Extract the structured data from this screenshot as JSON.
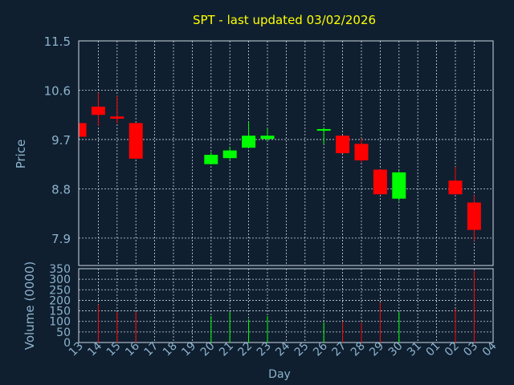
{
  "chart_data": {
    "type": "candlestick",
    "title": "SPT - last updated 03/02/2026",
    "colors": {
      "background": "#0f1f30",
      "axis_text": "#8db3cc",
      "title": "#ffff00",
      "grid": "#cfd8e0",
      "up": "#00ff00",
      "down": "#ff0000"
    },
    "x_ticks": [
      "13",
      "14",
      "15",
      "16",
      "17",
      "18",
      "19",
      "20",
      "21",
      "22",
      "23",
      "24",
      "25",
      "26",
      "27",
      "28",
      "29",
      "30",
      "31",
      "01",
      "02",
      "03",
      "04"
    ],
    "xlabel": "Day",
    "price_panel": {
      "ylabel": "Price",
      "ylim": [
        7.4,
        11.5
      ],
      "yticks": [
        "11.5",
        "10.6",
        "9.7",
        "8.8",
        "7.9"
      ],
      "ytick_values": [
        11.5,
        10.6,
        9.7,
        8.8,
        7.9
      ]
    },
    "volume_panel": {
      "ylabel": "Volume (0000)",
      "ylim": [
        0,
        350
      ],
      "yticks": [
        "350",
        "300",
        "250",
        "200",
        "150",
        "100",
        "50",
        "0"
      ],
      "ytick_values": [
        350,
        300,
        250,
        200,
        150,
        100,
        50,
        0
      ]
    },
    "candles": [
      {
        "day": "13",
        "open": 10.0,
        "close": 9.75,
        "high": 10.0,
        "low": 9.75,
        "volume": 0
      },
      {
        "day": "14",
        "open": 10.3,
        "close": 10.15,
        "high": 10.55,
        "low": 9.95,
        "volume": 180
      },
      {
        "day": "15",
        "open": 10.12,
        "close": 10.08,
        "high": 10.5,
        "low": 10.0,
        "volume": 145
      },
      {
        "day": "16",
        "open": 10.0,
        "close": 9.35,
        "high": 10.0,
        "low": 9.35,
        "volume": 145
      },
      {
        "day": "20",
        "open": 9.25,
        "close": 9.42,
        "high": 9.47,
        "low": 9.25,
        "volume": 125
      },
      {
        "day": "21",
        "open": 9.36,
        "close": 9.5,
        "high": 9.57,
        "low": 9.32,
        "volume": 145
      },
      {
        "day": "22",
        "open": 9.55,
        "close": 9.77,
        "high": 10.02,
        "low": 9.55,
        "volume": 110
      },
      {
        "day": "23",
        "open": 9.71,
        "close": 9.77,
        "high": 9.9,
        "low": 9.67,
        "volume": 125
      },
      {
        "day": "26",
        "open": 9.87,
        "close": 9.89,
        "high": 9.92,
        "low": 9.62,
        "volume": 95
      },
      {
        "day": "27",
        "open": 9.77,
        "close": 9.45,
        "high": 9.77,
        "low": 9.45,
        "volume": 100
      },
      {
        "day": "28",
        "open": 9.62,
        "close": 9.32,
        "high": 9.72,
        "low": 9.28,
        "volume": 95
      },
      {
        "day": "29",
        "open": 9.15,
        "close": 8.7,
        "high": 9.15,
        "low": 8.7,
        "volume": 190
      },
      {
        "day": "30",
        "open": 8.62,
        "close": 9.1,
        "high": 9.12,
        "low": 8.58,
        "volume": 145
      },
      {
        "day": "02",
        "open": 8.95,
        "close": 8.7,
        "high": 9.2,
        "low": 8.7,
        "volume": 160
      },
      {
        "day": "03",
        "open": 8.55,
        "close": 8.05,
        "high": 8.68,
        "low": 7.85,
        "volume": 340
      }
    ]
  }
}
